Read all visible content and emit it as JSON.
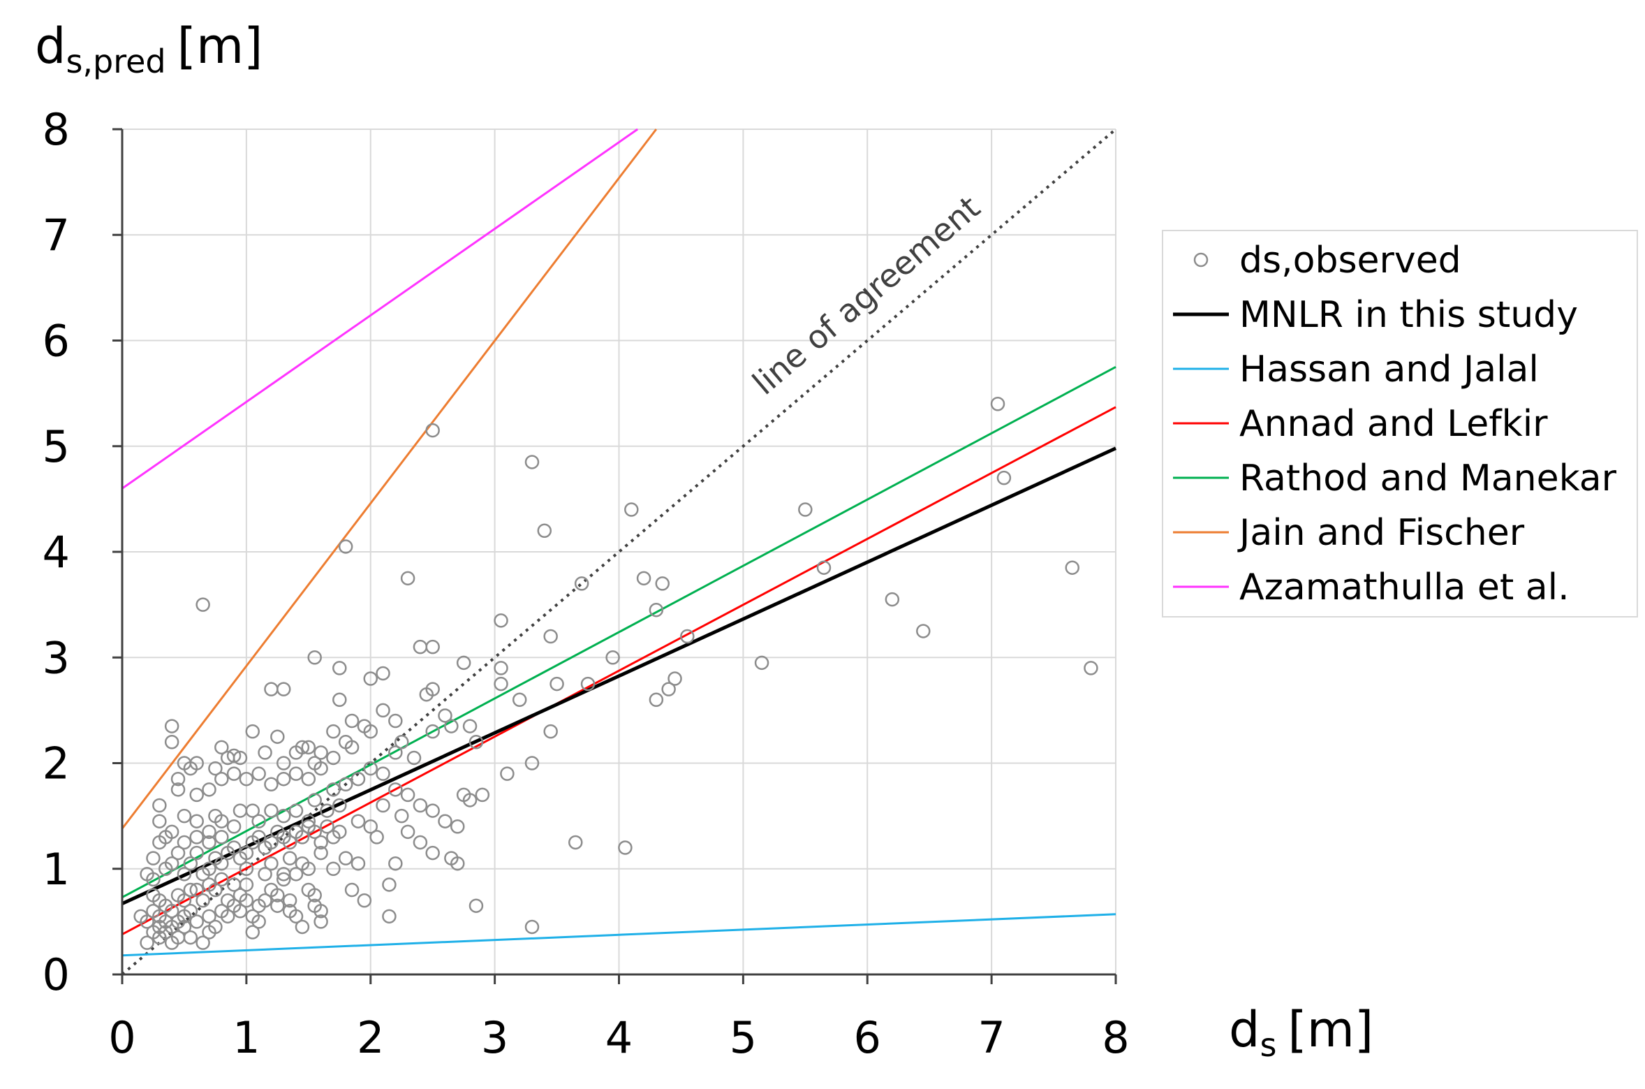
{
  "chart_data": {
    "type": "scatter",
    "title": "",
    "xlabel": "d",
    "xlabel_sub": "s",
    "xlabel_unit": "[m]",
    "ylabel": "d",
    "ylabel_sub": "s,pred",
    "ylabel_unit": "[m]",
    "xlim": [
      0,
      8
    ],
    "ylim": [
      0,
      8
    ],
    "x_ticks": [
      "0",
      "1",
      "2",
      "3",
      "4",
      "5",
      "6",
      "7",
      "8"
    ],
    "y_ticks": [
      "0",
      "1",
      "2",
      "3",
      "4",
      "5",
      "6",
      "7",
      "8"
    ],
    "grid": true,
    "legend_position": "right",
    "annotation": "line of agreement",
    "colors": {
      "observed": "#8c8c8c",
      "agreement": "#404040",
      "mnlr": "#000000",
      "hassan": "#1fb0e8",
      "annad": "#ff0000",
      "rathod": "#00b050",
      "jain": "#ed7d31",
      "azamathulla": "#ff33ff",
      "grid": "#d9d9d9"
    },
    "legend": [
      {
        "key": "observed",
        "label": "ds,observed",
        "kind": "marker"
      },
      {
        "key": "mnlr",
        "label": "MNLR in this study",
        "kind": "line"
      },
      {
        "key": "hassan",
        "label": "Hassan and Jalal",
        "kind": "line"
      },
      {
        "key": "annad",
        "label": "Annad and Lefkir",
        "kind": "line"
      },
      {
        "key": "rathod",
        "label": "Rathod and Manekar",
        "kind": "line"
      },
      {
        "key": "jain",
        "label": "Jain and Fischer",
        "kind": "line"
      },
      {
        "key": "azamathulla",
        "label": "Azamathulla et al.",
        "kind": "line"
      }
    ],
    "lines": [
      {
        "key": "agreement",
        "name": "line of agreement",
        "dashed": true,
        "x": [
          0,
          8
        ],
        "y": [
          0,
          8
        ]
      },
      {
        "key": "hassan",
        "name": "Hassan and Jalal",
        "x": [
          0,
          8
        ],
        "y": [
          0.18,
          0.57
        ]
      },
      {
        "key": "annad",
        "name": "Annad and Lefkir",
        "x": [
          0,
          8
        ],
        "y": [
          0.38,
          5.37
        ]
      },
      {
        "key": "rathod",
        "name": "Rathod and Manekar",
        "x": [
          0,
          8
        ],
        "y": [
          0.73,
          5.75
        ]
      },
      {
        "key": "jain",
        "name": "Jain and Fischer",
        "x": [
          0,
          4.3
        ],
        "y": [
          1.38,
          8.0
        ]
      },
      {
        "key": "azamathulla",
        "name": "Azamathulla et al.",
        "x": [
          0,
          4.15
        ],
        "y": [
          4.6,
          8.0
        ]
      },
      {
        "key": "mnlr",
        "name": "MNLR in this study",
        "thick": true,
        "x": [
          0,
          8
        ],
        "y": [
          0.67,
          4.98
        ]
      }
    ],
    "series": [
      {
        "name": "ds,observed",
        "points": [
          [
            0.65,
            3.5
          ],
          [
            0.4,
            2.35
          ],
          [
            0.4,
            2.2
          ],
          [
            0.45,
            1.85
          ],
          [
            0.5,
            2.0
          ],
          [
            0.55,
            1.95
          ],
          [
            0.6,
            2.0
          ],
          [
            0.8,
            2.15
          ],
          [
            0.85,
            2.05
          ],
          [
            0.9,
            2.07
          ],
          [
            0.75,
            1.95
          ],
          [
            0.45,
            1.75
          ],
          [
            0.3,
            1.6
          ],
          [
            0.3,
            1.45
          ],
          [
            0.35,
            1.3
          ],
          [
            0.5,
            1.5
          ],
          [
            0.6,
            1.45
          ],
          [
            0.7,
            1.35
          ],
          [
            0.75,
            1.5
          ],
          [
            0.8,
            1.45
          ],
          [
            0.95,
            1.55
          ],
          [
            1.05,
            1.55
          ],
          [
            1.1,
            1.45
          ],
          [
            1.2,
            1.55
          ],
          [
            1.3,
            1.5
          ],
          [
            1.4,
            1.55
          ],
          [
            1.5,
            1.45
          ],
          [
            1.55,
            1.65
          ],
          [
            1.65,
            1.55
          ],
          [
            1.75,
            1.6
          ],
          [
            1.2,
            2.7
          ],
          [
            1.3,
            2.7
          ],
          [
            1.4,
            2.1
          ],
          [
            1.45,
            2.15
          ],
          [
            1.5,
            2.15
          ],
          [
            1.55,
            2.0
          ],
          [
            1.6,
            2.1
          ],
          [
            1.7,
            2.3
          ],
          [
            1.75,
            2.6
          ],
          [
            1.8,
            2.2
          ],
          [
            1.85,
            2.15
          ],
          [
            1.95,
            2.35
          ],
          [
            1.55,
            3.0
          ],
          [
            1.75,
            2.9
          ],
          [
            2.0,
            2.8
          ],
          [
            2.1,
            2.85
          ],
          [
            2.1,
            2.5
          ],
          [
            2.2,
            2.4
          ],
          [
            2.3,
            3.75
          ],
          [
            2.4,
            3.1
          ],
          [
            2.5,
            3.1
          ],
          [
            2.45,
            2.65
          ],
          [
            2.5,
            2.7
          ],
          [
            2.5,
            2.3
          ],
          [
            2.65,
            2.35
          ],
          [
            2.75,
            2.95
          ],
          [
            2.8,
            2.35
          ],
          [
            2.85,
            2.2
          ],
          [
            3.05,
            3.35
          ],
          [
            3.05,
            2.9
          ],
          [
            3.05,
            2.75
          ],
          [
            3.2,
            2.6
          ],
          [
            3.3,
            4.85
          ],
          [
            3.4,
            4.2
          ],
          [
            3.45,
            3.2
          ],
          [
            3.5,
            2.75
          ],
          [
            3.45,
            2.3
          ],
          [
            3.7,
            3.7
          ],
          [
            3.75,
            2.75
          ],
          [
            3.95,
            3.0
          ],
          [
            4.1,
            4.4
          ],
          [
            4.2,
            3.75
          ],
          [
            4.3,
            3.45
          ],
          [
            4.35,
            3.7
          ],
          [
            4.55,
            3.2
          ],
          [
            4.3,
            2.6
          ],
          [
            4.4,
            2.7
          ],
          [
            4.45,
            2.8
          ],
          [
            5.15,
            2.95
          ],
          [
            5.5,
            4.4
          ],
          [
            5.65,
            3.85
          ],
          [
            6.2,
            3.55
          ],
          [
            6.45,
            3.25
          ],
          [
            7.05,
            5.4
          ],
          [
            7.1,
            4.7
          ],
          [
            7.65,
            3.85
          ],
          [
            7.8,
            2.9
          ],
          [
            2.5,
            5.15
          ],
          [
            1.8,
            4.05
          ],
          [
            3.65,
            1.25
          ],
          [
            4.05,
            1.2
          ],
          [
            3.3,
            0.45
          ],
          [
            2.85,
            0.65
          ],
          [
            2.2,
            1.05
          ],
          [
            2.15,
            0.85
          ],
          [
            2.15,
            0.55
          ],
          [
            1.95,
            0.7
          ],
          [
            1.85,
            0.8
          ],
          [
            0.2,
            0.95
          ],
          [
            0.25,
            0.9
          ],
          [
            0.25,
            0.75
          ],
          [
            0.25,
            0.6
          ],
          [
            0.3,
            0.55
          ],
          [
            0.3,
            0.45
          ],
          [
            0.35,
            0.5
          ],
          [
            0.35,
            0.4
          ],
          [
            0.4,
            0.6
          ],
          [
            0.4,
            0.45
          ],
          [
            0.45,
            0.5
          ],
          [
            0.45,
            0.35
          ],
          [
            0.5,
            0.55
          ],
          [
            0.5,
            0.45
          ],
          [
            0.55,
            0.6
          ],
          [
            0.6,
            0.5
          ],
          [
            0.65,
            0.3
          ],
          [
            0.7,
            0.55
          ],
          [
            0.75,
            0.45
          ],
          [
            0.8,
            0.6
          ],
          [
            0.85,
            0.7
          ],
          [
            0.9,
            0.65
          ],
          [
            0.95,
            0.75
          ],
          [
            1.0,
            0.85
          ],
          [
            1.05,
            0.55
          ],
          [
            1.1,
            0.5
          ],
          [
            1.05,
            0.4
          ],
          [
            1.15,
            0.7
          ],
          [
            1.2,
            0.8
          ],
          [
            1.25,
            0.75
          ],
          [
            1.3,
            0.9
          ],
          [
            1.35,
            0.6
          ],
          [
            1.4,
            0.55
          ],
          [
            1.45,
            0.45
          ],
          [
            1.5,
            0.8
          ],
          [
            1.55,
            0.75
          ],
          [
            1.6,
            0.6
          ],
          [
            1.6,
            0.5
          ],
          [
            0.35,
            1.0
          ],
          [
            0.4,
            1.05
          ],
          [
            0.45,
            1.15
          ],
          [
            0.5,
            0.95
          ],
          [
            0.55,
            1.05
          ],
          [
            0.6,
            1.15
          ],
          [
            0.65,
            0.95
          ],
          [
            0.7,
            1.0
          ],
          [
            0.75,
            1.1
          ],
          [
            0.8,
            1.05
          ],
          [
            0.85,
            1.15
          ],
          [
            0.9,
            1.2
          ],
          [
            0.95,
            1.1
          ],
          [
            1.0,
            1.15
          ],
          [
            1.05,
            1.25
          ],
          [
            1.1,
            1.3
          ],
          [
            1.15,
            1.2
          ],
          [
            1.2,
            1.25
          ],
          [
            1.25,
            1.35
          ],
          [
            1.3,
            1.3
          ],
          [
            1.35,
            1.25
          ],
          [
            1.4,
            1.35
          ],
          [
            1.45,
            1.3
          ],
          [
            1.5,
            1.4
          ],
          [
            1.55,
            1.35
          ],
          [
            1.6,
            1.25
          ],
          [
            1.65,
            1.4
          ],
          [
            1.7,
            1.3
          ],
          [
            1.75,
            1.35
          ],
          [
            0.6,
            1.7
          ],
          [
            0.7,
            1.75
          ],
          [
            0.8,
            1.85
          ],
          [
            0.9,
            1.9
          ],
          [
            1.0,
            1.85
          ],
          [
            1.1,
            1.9
          ],
          [
            1.2,
            1.8
          ],
          [
            1.3,
            1.85
          ],
          [
            1.4,
            1.9
          ],
          [
            1.5,
            1.85
          ],
          [
            1.6,
            1.95
          ],
          [
            1.7,
            1.75
          ],
          [
            1.8,
            1.8
          ],
          [
            1.9,
            1.85
          ],
          [
            2.0,
            1.95
          ],
          [
            2.1,
            1.9
          ],
          [
            2.2,
            1.75
          ],
          [
            2.3,
            1.7
          ],
          [
            2.4,
            1.6
          ],
          [
            2.5,
            1.55
          ],
          [
            2.6,
            1.45
          ],
          [
            2.7,
            1.4
          ],
          [
            2.75,
            1.7
          ],
          [
            2.8,
            1.65
          ],
          [
            2.9,
            1.7
          ],
          [
            3.1,
            1.9
          ],
          [
            3.3,
            2.0
          ],
          [
            1.9,
            1.45
          ],
          [
            2.0,
            1.4
          ],
          [
            2.05,
            1.3
          ],
          [
            2.1,
            1.6
          ],
          [
            2.25,
            1.5
          ],
          [
            2.3,
            1.35
          ],
          [
            2.4,
            1.25
          ],
          [
            2.5,
            1.15
          ],
          [
            2.65,
            1.1
          ],
          [
            2.7,
            1.05
          ],
          [
            1.25,
            2.25
          ],
          [
            1.3,
            2.0
          ],
          [
            1.15,
            2.1
          ],
          [
            1.05,
            2.3
          ],
          [
            0.95,
            2.05
          ],
          [
            1.7,
            2.05
          ],
          [
            1.85,
            2.4
          ],
          [
            2.0,
            2.3
          ],
          [
            2.25,
            2.2
          ],
          [
            2.6,
            2.45
          ],
          [
            2.2,
            2.1
          ],
          [
            2.35,
            2.05
          ],
          [
            1.6,
            1.15
          ],
          [
            1.7,
            1.0
          ],
          [
            1.8,
            1.1
          ],
          [
            1.9,
            1.05
          ],
          [
            1.45,
            1.05
          ],
          [
            1.5,
            1.0
          ],
          [
            1.4,
            0.95
          ],
          [
            1.3,
            0.95
          ],
          [
            1.35,
            1.1
          ],
          [
            1.2,
            1.05
          ],
          [
            1.15,
            0.95
          ],
          [
            1.0,
            1.0
          ],
          [
            0.9,
            0.85
          ],
          [
            0.8,
            0.9
          ],
          [
            0.7,
            0.85
          ],
          [
            0.6,
            0.8
          ],
          [
            0.5,
            0.7
          ],
          [
            0.45,
            0.75
          ],
          [
            0.3,
            0.7
          ],
          [
            0.2,
            0.5
          ],
          [
            0.25,
            0.4
          ],
          [
            0.35,
            0.65
          ],
          [
            0.55,
            0.8
          ],
          [
            0.65,
            0.7
          ],
          [
            0.75,
            0.8
          ],
          [
            0.85,
            0.55
          ],
          [
            0.95,
            0.6
          ],
          [
            1.1,
            0.65
          ],
          [
            0.25,
            1.1
          ],
          [
            0.3,
            1.25
          ],
          [
            0.4,
            1.35
          ],
          [
            0.5,
            1.25
          ],
          [
            0.6,
            1.3
          ],
          [
            0.7,
            1.25
          ],
          [
            0.8,
            1.3
          ],
          [
            0.9,
            1.4
          ],
          [
            0.3,
            0.35
          ],
          [
            0.4,
            0.3
          ],
          [
            0.2,
            0.3
          ],
          [
            0.55,
            0.35
          ],
          [
            0.7,
            0.4
          ],
          [
            0.15,
            0.55
          ],
          [
            1.25,
            0.65
          ],
          [
            1.35,
            0.7
          ],
          [
            1.55,
            0.65
          ],
          [
            1.0,
            0.7
          ]
        ]
      }
    ]
  }
}
